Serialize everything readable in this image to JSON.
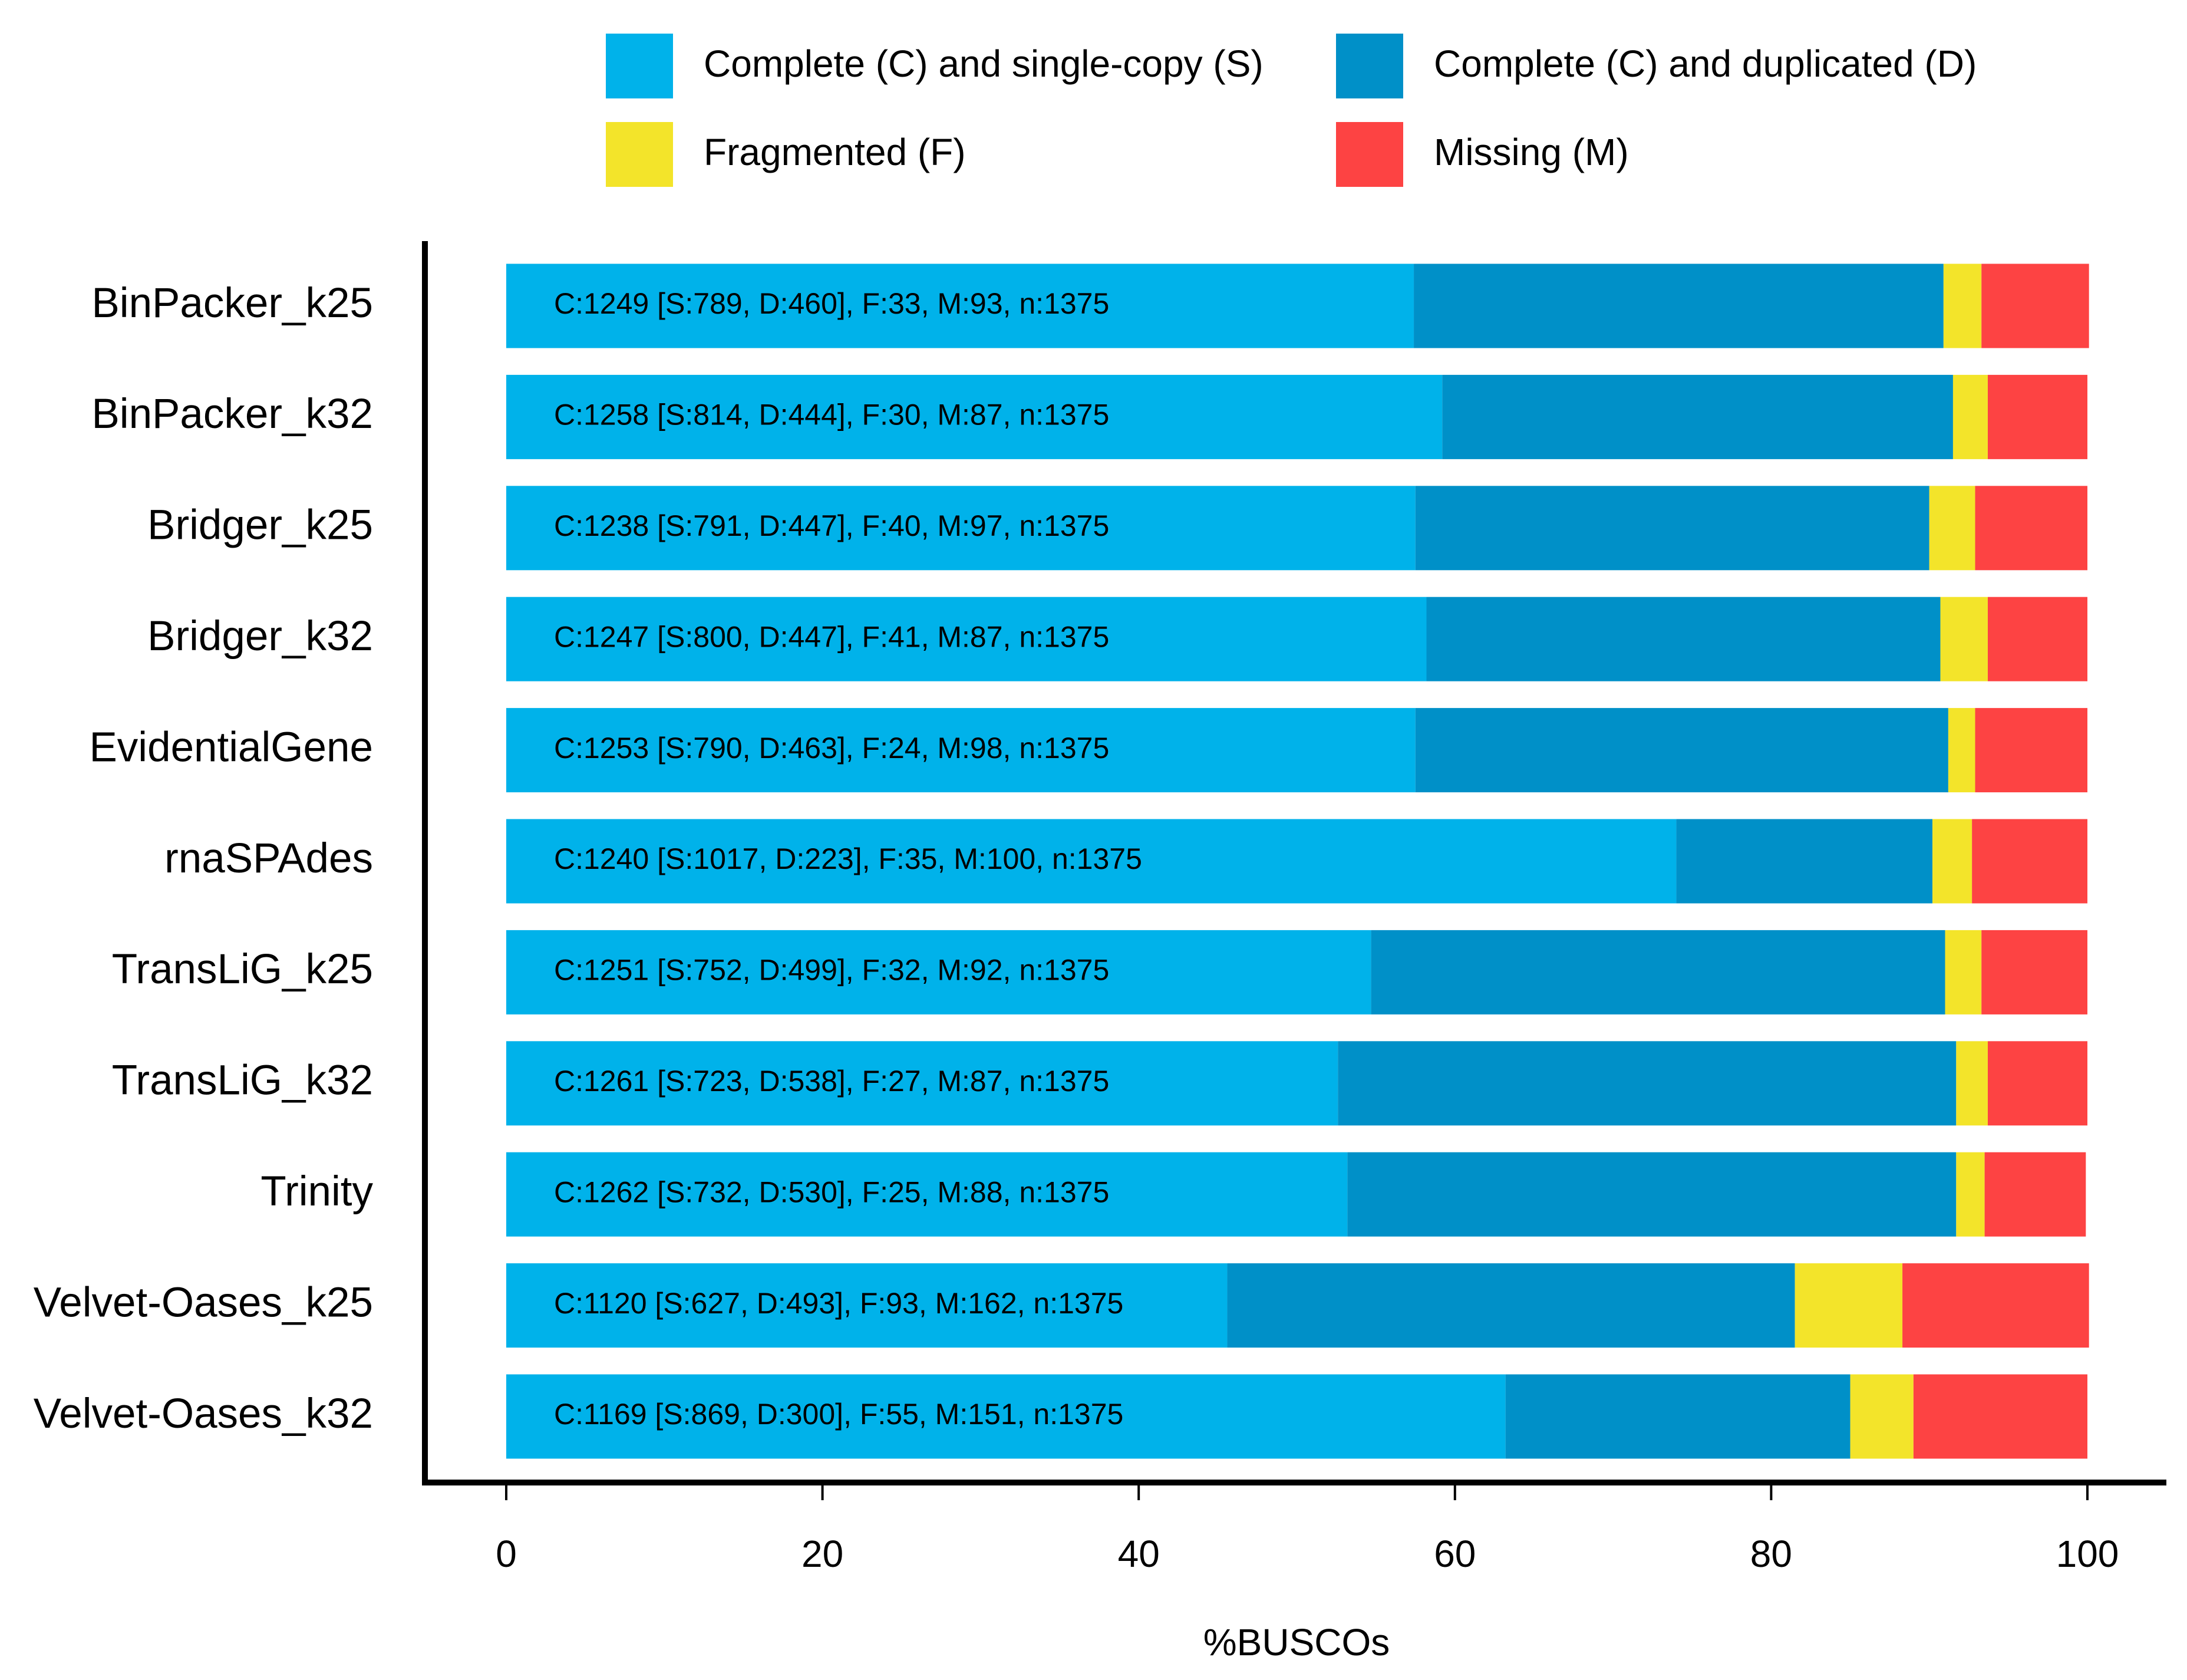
{
  "chart_data": {
    "type": "stacked_barh",
    "x_label": "%BUSCOs",
    "categories": [
      "BinPacker_k25",
      "BinPacker_k32",
      "Bridger_k25",
      "Bridger_k32",
      "EvidentialGene",
      "rnaSPAdes",
      "TransLiG_k25",
      "TransLiG_k32",
      "Trinity",
      "Velvet-Oases_k25",
      "Velvet-Oases_k32"
    ],
    "series": [
      {
        "name": "Complete (C) and single-copy (S)",
        "color": "#00b2ea",
        "values": [
          57.4,
          59.2,
          57.5,
          58.2,
          57.5,
          74.0,
          54.7,
          52.6,
          53.2,
          45.6,
          63.2
        ]
      },
      {
        "name": "Complete (C) and duplicated (D)",
        "color": "#0090c8",
        "values": [
          33.5,
          32.3,
          32.5,
          32.5,
          33.7,
          16.2,
          36.3,
          39.1,
          38.5,
          35.9,
          21.8
        ]
      },
      {
        "name": "Fragmented (F)",
        "color": "#f3e42a",
        "values": [
          2.4,
          2.2,
          2.9,
          3.0,
          1.7,
          2.5,
          2.3,
          2.0,
          1.8,
          6.8,
          4.0
        ]
      },
      {
        "name": "Missing (M)",
        "color": "#fd4343",
        "values": [
          6.8,
          6.3,
          7.1,
          6.3,
          7.1,
          7.3,
          6.7,
          6.3,
          6.4,
          11.8,
          11.0
        ]
      }
    ],
    "bar_labels": [
      "C:1249 [S:789, D:460], F:33, M:93, n:1375",
      "C:1258 [S:814, D:444], F:30, M:87, n:1375",
      "C:1238 [S:791, D:447], F:40, M:97, n:1375",
      "C:1247 [S:800, D:447], F:41, M:87, n:1375",
      "C:1253 [S:790, D:463], F:24, M:98, n:1375",
      "C:1240 [S:1017, D:223], F:35, M:100, n:1375",
      "C:1251 [S:752, D:499], F:32, M:92, n:1375",
      "C:1261 [S:723, D:538], F:27, M:87, n:1375",
      "C:1262 [S:732, D:530], F:25, M:88, n:1375",
      "C:1120 [S:627, D:493], F:93, M:162, n:1375",
      "C:1169 [S:869, D:300], F:55, M:151, n:1375"
    ],
    "xlim": [
      0,
      100
    ],
    "xticks": [
      0,
      20,
      40,
      60,
      80,
      100
    ]
  }
}
